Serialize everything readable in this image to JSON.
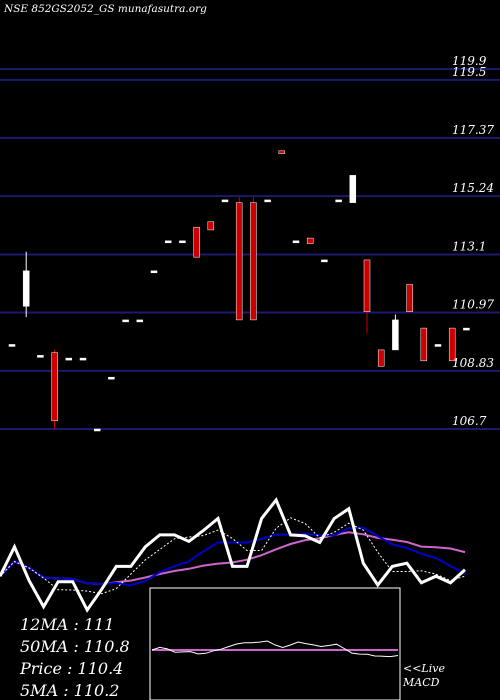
{
  "header": {
    "title": "NSE 852GS2052_GS munafasutra.org"
  },
  "colors": {
    "background": "#000000",
    "gridline": "#1a1a6e",
    "candle_up": "#ffffff",
    "candle_down": "#cc0000",
    "price_line": "#ffffff",
    "ma_short": "#ffffff",
    "ma_mid": "#0000cc",
    "ma_long": "#cc66cc",
    "macd_box_border": "#ffffff",
    "macd_signal": "#cc66cc"
  },
  "stats": {
    "ma12": "12MA : 111",
    "ma50": "50MA : 110.8",
    "price": "Price  : 110.4",
    "ma5": "5MA : 110.2"
  },
  "macd_label": {
    "line1": "<<Live",
    "line2": "MACD"
  },
  "chart_data": {
    "type": "candlestick",
    "title": "NSE 852GS2052_GS munafasutra.org",
    "y_ticks": [
      119.9,
      119.5,
      117.37,
      115.24,
      113.1,
      110.97,
      108.83,
      106.7
    ],
    "y_tick_labels": [
      "119.9",
      "119.5",
      "117.37",
      "115.24",
      "113.1",
      "110.97",
      "108.83",
      "106.7"
    ],
    "ylim": [
      106.5,
      120.5
    ],
    "grid": true,
    "candles": [
      {
        "open": 109.8,
        "high": 109.8,
        "low": 109.8,
        "close": 109.8
      },
      {
        "open": 111.2,
        "high": 113.2,
        "low": 110.8,
        "close": 112.5
      },
      {
        "open": 109.4,
        "high": 109.4,
        "low": 109.4,
        "close": 109.4
      },
      {
        "open": 109.5,
        "high": 109.6,
        "low": 106.7,
        "close": 107.0
      },
      {
        "open": 109.3,
        "high": 109.3,
        "low": 109.3,
        "close": 109.3
      },
      {
        "open": 109.3,
        "high": 109.3,
        "low": 109.3,
        "close": 109.3
      },
      {
        "open": 106.7,
        "high": 106.7,
        "low": 106.7,
        "close": 106.7
      },
      {
        "open": 108.6,
        "high": 108.6,
        "low": 108.6,
        "close": 108.6
      },
      {
        "open": 110.7,
        "high": 110.7,
        "low": 110.7,
        "close": 110.7
      },
      {
        "open": 110.7,
        "high": 110.7,
        "low": 110.7,
        "close": 110.7
      },
      {
        "open": 112.5,
        "high": 112.5,
        "low": 112.5,
        "close": 112.5
      },
      {
        "open": 113.6,
        "high": 113.6,
        "low": 113.6,
        "close": 113.6
      },
      {
        "open": 113.6,
        "high": 113.6,
        "low": 113.6,
        "close": 113.6
      },
      {
        "open": 114.1,
        "high": 114.1,
        "low": 113.0,
        "close": 113.0
      },
      {
        "open": 114.3,
        "high": 114.3,
        "low": 114.0,
        "close": 114.0
      },
      {
        "open": 115.1,
        "high": 115.1,
        "low": 115.1,
        "close": 115.1
      },
      {
        "open": 115.0,
        "high": 115.2,
        "low": 110.7,
        "close": 110.7
      },
      {
        "open": 115.0,
        "high": 115.2,
        "low": 110.7,
        "close": 110.7
      },
      {
        "open": 115.1,
        "high": 115.1,
        "low": 115.1,
        "close": 115.1
      },
      {
        "open": 116.9,
        "high": 116.9,
        "low": 116.8,
        "close": 116.8
      },
      {
        "open": 113.6,
        "high": 113.6,
        "low": 113.6,
        "close": 113.6
      },
      {
        "open": 113.7,
        "high": 113.7,
        "low": 113.5,
        "close": 113.5
      },
      {
        "open": 112.9,
        "high": 112.9,
        "low": 112.9,
        "close": 112.9
      },
      {
        "open": 115.1,
        "high": 115.1,
        "low": 115.1,
        "close": 115.1
      },
      {
        "open": 115.0,
        "high": 116.0,
        "low": 115.0,
        "close": 116.0
      },
      {
        "open": 112.9,
        "high": 112.9,
        "low": 110.2,
        "close": 111.0
      },
      {
        "open": 109.6,
        "high": 109.6,
        "low": 109.0,
        "close": 109.0
      },
      {
        "open": 109.6,
        "high": 110.9,
        "low": 109.6,
        "close": 110.7
      },
      {
        "open": 112.0,
        "high": 112.0,
        "low": 111.0,
        "close": 111.0
      },
      {
        "open": 110.4,
        "high": 110.4,
        "low": 109.2,
        "close": 109.2
      },
      {
        "open": 109.8,
        "high": 109.8,
        "low": 109.8,
        "close": 109.8
      },
      {
        "open": 110.4,
        "high": 110.4,
        "low": 109.2,
        "close": 109.2
      },
      {
        "open": 110.4,
        "high": 110.4,
        "low": 110.4,
        "close": 110.4
      }
    ]
  }
}
